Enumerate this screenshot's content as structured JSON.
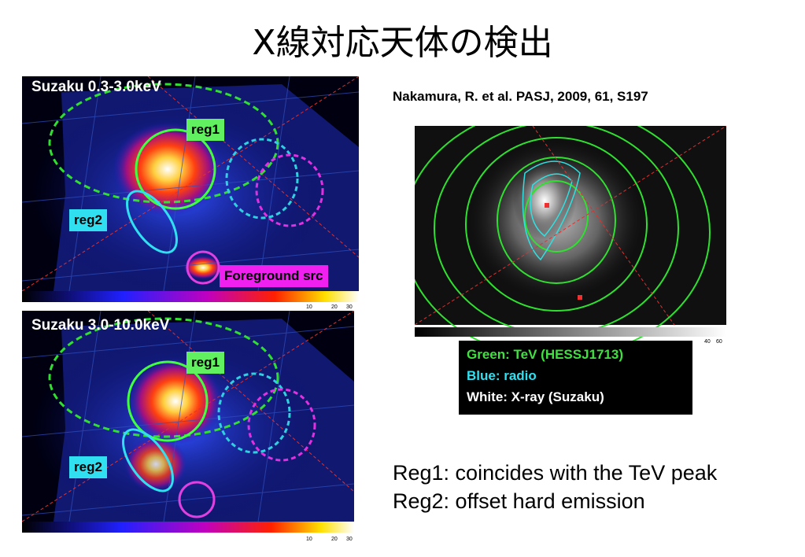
{
  "title": "X線対応天体の検出",
  "panels": [
    {
      "label": "Suzaku 0.3-3.0keV",
      "regions": [
        "reg1",
        "reg2",
        "Foreground src"
      ],
      "colorbar_ticks": [
        "10",
        "20",
        "30"
      ]
    },
    {
      "label": "Suzaku 3.0-10.0keV",
      "regions": [
        "reg1",
        "reg2"
      ],
      "colorbar_ticks": [
        "10",
        "20",
        "30"
      ]
    }
  ],
  "reference": "Nakamura, R. et al. PASJ, 2009, 61, S197",
  "overlay": {
    "colorbar_ticks": [
      "40",
      "60"
    ]
  },
  "legend": [
    "Green: TeV (HESSJ1713)",
    "Blue: radio",
    "White: X-ray (Suzaku)"
  ],
  "notes": [
    "Reg1: coincides with the TeV peak",
    "Reg2: offset hard emission"
  ]
}
